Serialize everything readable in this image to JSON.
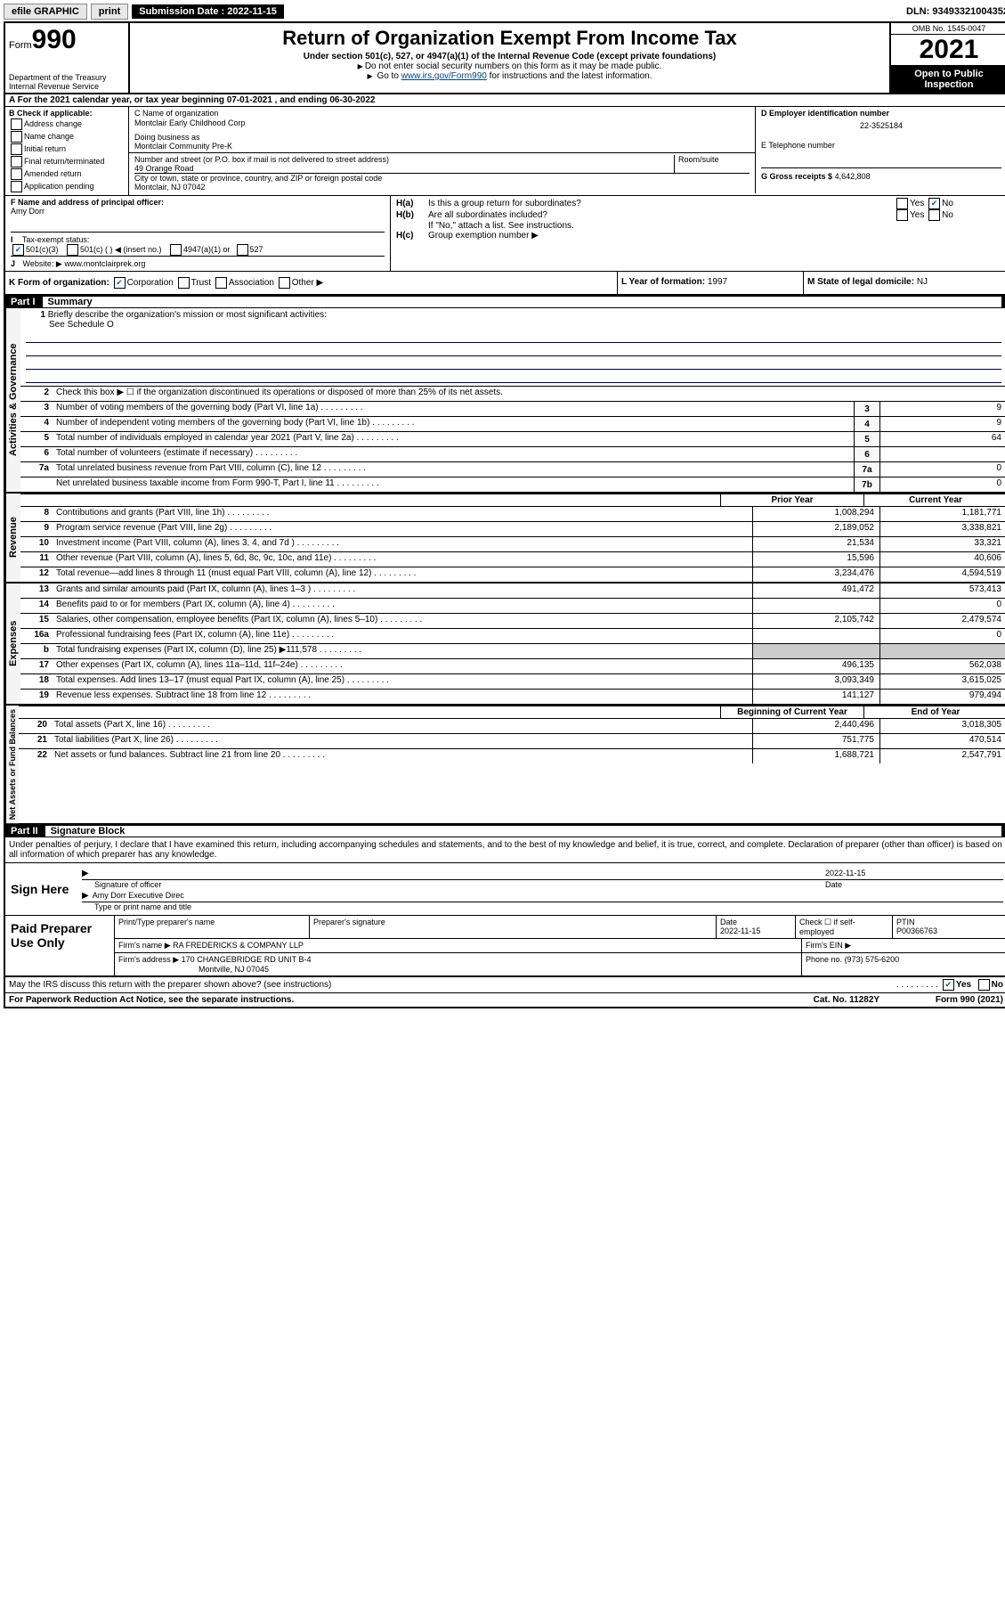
{
  "topbar": {
    "efile": "efile GRAPHIC",
    "print": "print",
    "subdate_label": "Submission Date : 2022-11-15",
    "dln": "DLN: 93493321004352"
  },
  "header": {
    "form_prefix": "Form",
    "form_no": "990",
    "dept1": "Department of the Treasury",
    "dept2": "Internal Revenue Service",
    "title": "Return of Organization Exempt From Income Tax",
    "sub": "Under section 501(c), 527, or 4947(a)(1) of the Internal Revenue Code (except private foundations)",
    "note1": "Do not enter social security numbers on this form as it may be made public.",
    "note2_pre": "Go to ",
    "note2_link": "www.irs.gov/Form990",
    "note2_post": " for instructions and the latest information.",
    "omb": "OMB No. 1545-0047",
    "year": "2021",
    "public": "Open to Public Inspection"
  },
  "rowA": "A For the 2021 calendar year, or tax year beginning 07-01-2021   , and ending 06-30-2022",
  "B": {
    "label": "B Check if applicable:",
    "opts": [
      "Address change",
      "Name change",
      "Initial return",
      "Final return/terminated",
      "Amended return",
      "Application pending"
    ]
  },
  "C": {
    "name_label": "C Name of organization",
    "name": "Montclair Early Childhood Corp",
    "dba_label": "Doing business as",
    "dba": "Montclair Community Pre-K",
    "street_label": "Number and street (or P.O. box if mail is not delivered to street address)",
    "room_label": "Room/suite",
    "street": "49 Orange Road",
    "city_label": "City or town, state or province, country, and ZIP or foreign postal code",
    "city": "Montclair, NJ  07042"
  },
  "D": {
    "label": "D Employer identification number",
    "val": "22-3525184"
  },
  "E": {
    "label": "E Telephone number",
    "val": ""
  },
  "G": {
    "label": "G Gross receipts $",
    "val": "4,642,808"
  },
  "F": {
    "label": "F Name and address of principal officer:",
    "name": "Amy Dorr"
  },
  "H": {
    "a": "Is this a group return for subordinates?",
    "b": "Are all subordinates included?",
    "bnote": "If \"No,\" attach a list. See instructions.",
    "c": "Group exemption number ▶"
  },
  "I": {
    "label": "Tax-exempt status:",
    "opts": [
      "501(c)(3)",
      "501(c) (   ) ◀ (insert no.)",
      "4947(a)(1) or",
      "527"
    ]
  },
  "J": {
    "label": "Website: ▶",
    "val": "www.montclairprek.org"
  },
  "K": {
    "label": "K Form of organization:",
    "opts": [
      "Corporation",
      "Trust",
      "Association",
      "Other ▶"
    ]
  },
  "L": {
    "label": "L Year of formation:",
    "val": "1997"
  },
  "M": {
    "label": "M State of legal domicile:",
    "val": "NJ"
  },
  "part1": {
    "num": "Part I",
    "title": "Summary"
  },
  "gov": {
    "label": "Activities & Governance",
    "l1": "Briefly describe the organization's mission or most significant activities:",
    "l1val": "See Schedule O",
    "l2": "Check this box ▶ ☐  if the organization discontinued its operations or disposed of more than 25% of its net assets.",
    "l3": "Number of voting members of the governing body (Part VI, line 1a)",
    "l4": "Number of independent voting members of the governing body (Part VI, line 1b)",
    "l5": "Total number of individuals employed in calendar year 2021 (Part V, line 2a)",
    "l6": "Total number of volunteers (estimate if necessary)",
    "l7a": "Total unrelated business revenue from Part VIII, column (C), line 12",
    "l7b": "Net unrelated business taxable income from Form 990-T, Part I, line 11",
    "v3": "9",
    "v4": "9",
    "v5": "64",
    "v6": "",
    "v7a": "0",
    "v7b": "0"
  },
  "colhdr": {
    "prior": "Prior Year",
    "curr": "Current Year"
  },
  "rev": {
    "label": "Revenue",
    "rows": [
      {
        "n": "8",
        "t": "Contributions and grants (Part VIII, line 1h)",
        "p": "1,008,294",
        "c": "1,181,771"
      },
      {
        "n": "9",
        "t": "Program service revenue (Part VIII, line 2g)",
        "p": "2,189,052",
        "c": "3,338,821"
      },
      {
        "n": "10",
        "t": "Investment income (Part VIII, column (A), lines 3, 4, and 7d )",
        "p": "21,534",
        "c": "33,321"
      },
      {
        "n": "11",
        "t": "Other revenue (Part VIII, column (A), lines 5, 6d, 8c, 9c, 10c, and 11e)",
        "p": "15,596",
        "c": "40,606"
      },
      {
        "n": "12",
        "t": "Total revenue—add lines 8 through 11 (must equal Part VIII, column (A), line 12)",
        "p": "3,234,476",
        "c": "4,594,519"
      }
    ]
  },
  "exp": {
    "label": "Expenses",
    "rows": [
      {
        "n": "13",
        "t": "Grants and similar amounts paid (Part IX, column (A), lines 1–3 )",
        "p": "491,472",
        "c": "573,413"
      },
      {
        "n": "14",
        "t": "Benefits paid to or for members (Part IX, column (A), line 4)",
        "p": "",
        "c": "0"
      },
      {
        "n": "15",
        "t": "Salaries, other compensation, employee benefits (Part IX, column (A), lines 5–10)",
        "p": "2,105,742",
        "c": "2,479,574"
      },
      {
        "n": "16a",
        "t": "Professional fundraising fees (Part IX, column (A), line 11e)",
        "p": "",
        "c": "0"
      },
      {
        "n": "b",
        "t": "Total fundraising expenses (Part IX, column (D), line 25) ▶111,578",
        "p": "grey",
        "c": "grey"
      },
      {
        "n": "17",
        "t": "Other expenses (Part IX, column (A), lines 11a–11d, 11f–24e)",
        "p": "496,135",
        "c": "562,038"
      },
      {
        "n": "18",
        "t": "Total expenses. Add lines 13–17 (must equal Part IX, column (A), line 25)",
        "p": "3,093,349",
        "c": "3,615,025"
      },
      {
        "n": "19",
        "t": "Revenue less expenses. Subtract line 18 from line 12",
        "p": "141,127",
        "c": "979,494"
      }
    ]
  },
  "colhdr2": {
    "prior": "Beginning of Current Year",
    "curr": "End of Year"
  },
  "net": {
    "label": "Net Assets or Fund Balances",
    "rows": [
      {
        "n": "20",
        "t": "Total assets (Part X, line 16)",
        "p": "2,440,496",
        "c": "3,018,305"
      },
      {
        "n": "21",
        "t": "Total liabilities (Part X, line 26)",
        "p": "751,775",
        "c": "470,514"
      },
      {
        "n": "22",
        "t": "Net assets or fund balances. Subtract line 21 from line 20",
        "p": "1,688,721",
        "c": "2,547,791"
      }
    ]
  },
  "part2": {
    "num": "Part II",
    "title": "Signature Block"
  },
  "sig": {
    "intro": "Under penalties of perjury, I declare that I have examined this return, including accompanying schedules and statements, and to the best of my knowledge and belief, it is true, correct, and complete. Declaration of preparer (other than officer) is based on all information of which preparer has any knowledge.",
    "sign_here": "Sign Here",
    "sig_officer": "Signature of officer",
    "date": "Date",
    "date_val": "2022-11-15",
    "name": "Amy Dorr  Executive Direc",
    "name_label": "Type or print name and title"
  },
  "prep": {
    "label": "Paid Preparer Use Only",
    "h1": "Print/Type preparer's name",
    "h2": "Preparer's signature",
    "h3": "Date",
    "h3v": "2022-11-15",
    "h4": "Check ☐ if self-employed",
    "h5": "PTIN",
    "h5v": "P00366763",
    "firm_label": "Firm's name   ▶",
    "firm": "RA FREDERICKS & COMPANY LLP",
    "ein_label": "Firm's EIN ▶",
    "addr_label": "Firm's address ▶",
    "addr1": "170 CHANGEBRIDGE RD UNIT B-4",
    "addr2": "Montville, NJ  07045",
    "phone_label": "Phone no.",
    "phone": "(973) 575-6200"
  },
  "footer": {
    "discuss": "May the IRS discuss this return with the preparer shown above? (see instructions)",
    "paperwork": "For Paperwork Reduction Act Notice, see the separate instructions.",
    "cat": "Cat. No. 11282Y",
    "formref": "Form 990 (2021)"
  }
}
